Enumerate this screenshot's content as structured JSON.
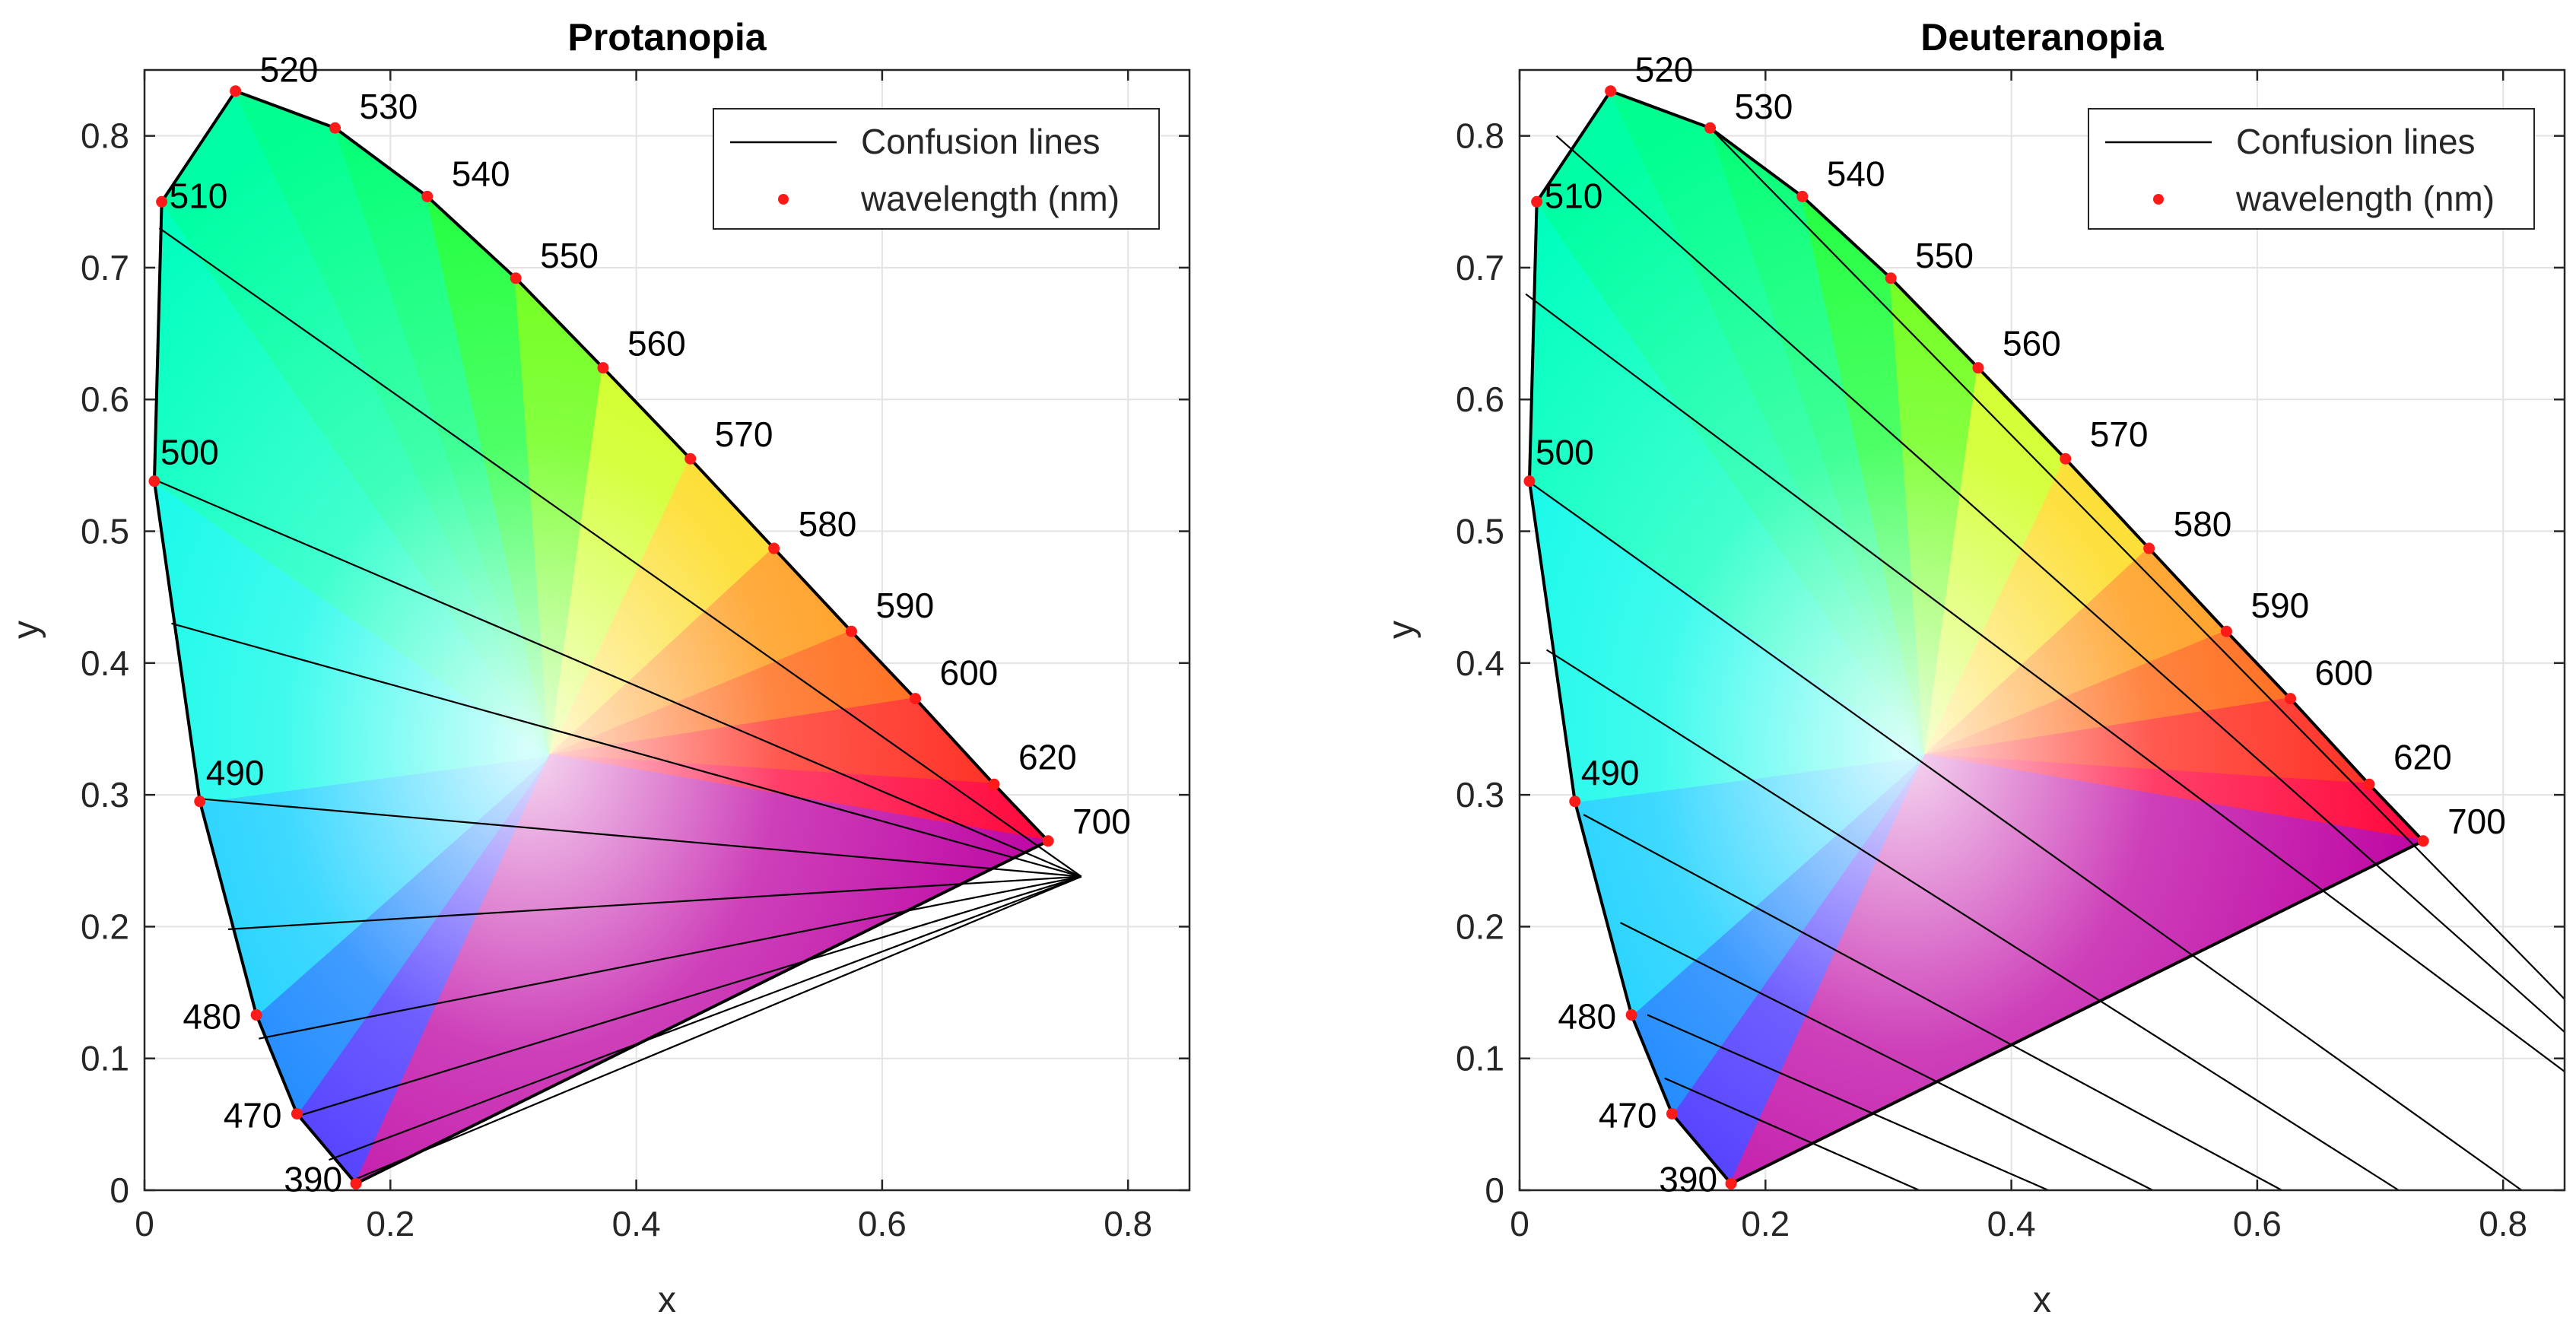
{
  "chart_data": [
    {
      "type": "scatter",
      "title": "Protanopia",
      "xlabel": "x",
      "ylabel": "y",
      "xlim": [
        0,
        0.85
      ],
      "ylim": [
        0,
        0.85
      ],
      "xticks": [
        0,
        0.2,
        0.4,
        0.6,
        0.8
      ],
      "xtick_labels": [
        "0",
        "0.2",
        "0.4",
        "0.6",
        "0.8"
      ],
      "yticks": [
        0,
        0.1,
        0.2,
        0.3,
        0.4,
        0.5,
        0.6,
        0.7,
        0.8
      ],
      "ytick_labels": [
        "0",
        "0.1",
        "0.2",
        "0.3",
        "0.4",
        "0.5",
        "0.6",
        "0.7",
        "0.8"
      ],
      "grid": true,
      "legend": {
        "position": "top-right",
        "entries": [
          {
            "label": "Confusion lines",
            "kind": "line"
          },
          {
            "label": "wavelength (nm)",
            "kind": "marker"
          }
        ]
      },
      "series": [
        {
          "name": "wavelength (nm)",
          "color": "#ff1a1a",
          "points": [
            {
              "label": "390",
              "x": 0.172,
              "y": 0.005
            },
            {
              "label": "470",
              "x": 0.124,
              "y": 0.058
            },
            {
              "label": "480",
              "x": 0.091,
              "y": 0.133
            },
            {
              "label": "490",
              "x": 0.045,
              "y": 0.295
            },
            {
              "label": "500",
              "x": 0.008,
              "y": 0.538
            },
            {
              "label": "510",
              "x": 0.014,
              "y": 0.75
            },
            {
              "label": "520",
              "x": 0.074,
              "y": 0.834
            },
            {
              "label": "530",
              "x": 0.155,
              "y": 0.806
            },
            {
              "label": "540",
              "x": 0.23,
              "y": 0.754
            },
            {
              "label": "550",
              "x": 0.302,
              "y": 0.692
            },
            {
              "label": "560",
              "x": 0.373,
              "y": 0.624
            },
            {
              "label": "570",
              "x": 0.444,
              "y": 0.555
            },
            {
              "label": "580",
              "x": 0.512,
              "y": 0.487
            },
            {
              "label": "590",
              "x": 0.575,
              "y": 0.424
            },
            {
              "label": "600",
              "x": 0.627,
              "y": 0.373
            },
            {
              "label": "620",
              "x": 0.691,
              "y": 0.308
            },
            {
              "label": "700",
              "x": 0.735,
              "y": 0.265
            }
          ]
        },
        {
          "name": "Confusion lines",
          "color": "#000000",
          "copunctal_point": {
            "x": 0.747,
            "y": 0.253
          },
          "plot_endpoint": {
            "x": 0.762,
            "y": 0.238
          },
          "start_points": [
            {
              "x": 0.012,
              "y": 0.73
            },
            {
              "x": 0.006,
              "y": 0.54
            },
            {
              "x": 0.022,
              "y": 0.43
            },
            {
              "x": 0.045,
              "y": 0.297
            },
            {
              "x": 0.068,
              "y": 0.198
            },
            {
              "x": 0.093,
              "y": 0.115
            },
            {
              "x": 0.124,
              "y": 0.056
            },
            {
              "x": 0.15,
              "y": 0.023
            },
            {
              "x": 0.168,
              "y": 0.007
            }
          ]
        }
      ]
    },
    {
      "type": "scatter",
      "title": "Deuteranopia",
      "xlabel": "x",
      "ylabel": "y",
      "xlim": [
        0,
        0.85
      ],
      "ylim": [
        0,
        0.85
      ],
      "xticks": [
        0,
        0.2,
        0.4,
        0.6,
        0.8
      ],
      "xtick_labels": [
        "0",
        "0.2",
        "0.4",
        "0.6",
        "0.8"
      ],
      "yticks": [
        0,
        0.1,
        0.2,
        0.3,
        0.4,
        0.5,
        0.6,
        0.7,
        0.8
      ],
      "ytick_labels": [
        "0",
        "0.1",
        "0.2",
        "0.3",
        "0.4",
        "0.5",
        "0.6",
        "0.7",
        "0.8"
      ],
      "grid": true,
      "legend": {
        "position": "top-right",
        "entries": [
          {
            "label": "Confusion lines",
            "kind": "line"
          },
          {
            "label": "wavelength (nm)",
            "kind": "marker"
          }
        ]
      },
      "series": [
        {
          "name": "wavelength (nm)",
          "color": "#ff1a1a",
          "points": [
            {
              "label": "390",
              "x": 0.172,
              "y": 0.005
            },
            {
              "label": "470",
              "x": 0.124,
              "y": 0.058
            },
            {
              "label": "480",
              "x": 0.091,
              "y": 0.133
            },
            {
              "label": "490",
              "x": 0.045,
              "y": 0.295
            },
            {
              "label": "500",
              "x": 0.008,
              "y": 0.538
            },
            {
              "label": "510",
              "x": 0.014,
              "y": 0.75
            },
            {
              "label": "520",
              "x": 0.074,
              "y": 0.834
            },
            {
              "label": "530",
              "x": 0.155,
              "y": 0.806
            },
            {
              "label": "540",
              "x": 0.23,
              "y": 0.754
            },
            {
              "label": "550",
              "x": 0.302,
              "y": 0.692
            },
            {
              "label": "560",
              "x": 0.373,
              "y": 0.624
            },
            {
              "label": "570",
              "x": 0.444,
              "y": 0.555
            },
            {
              "label": "580",
              "x": 0.512,
              "y": 0.487
            },
            {
              "label": "590",
              "x": 0.575,
              "y": 0.424
            },
            {
              "label": "600",
              "x": 0.627,
              "y": 0.373
            },
            {
              "label": "620",
              "x": 0.691,
              "y": 0.308
            },
            {
              "label": "700",
              "x": 0.735,
              "y": 0.265
            }
          ]
        },
        {
          "name": "Confusion lines",
          "color": "#000000",
          "lines": [
            [
              [
                0.155,
                0.806
              ],
              [
                0.85,
                0.145
              ]
            ],
            [
              [
                0.03,
                0.8
              ],
              [
                0.85,
                0.12
              ]
            ],
            [
              [
                0.005,
                0.68
              ],
              [
                0.85,
                0.09
              ]
            ],
            [
              [
                0.004,
                0.54
              ],
              [
                0.815,
                0.0
              ]
            ],
            [
              [
                0.022,
                0.41
              ],
              [
                0.715,
                0.0
              ]
            ],
            [
              [
                0.052,
                0.285
              ],
              [
                0.62,
                0.0
              ]
            ],
            [
              [
                0.082,
                0.203
              ],
              [
                0.515,
                0.0
              ]
            ],
            [
              [
                0.104,
                0.133
              ],
              [
                0.43,
                0.0
              ]
            ],
            [
              [
                0.118,
                0.085
              ],
              [
                0.325,
                0.0
              ]
            ]
          ]
        }
      ]
    }
  ]
}
